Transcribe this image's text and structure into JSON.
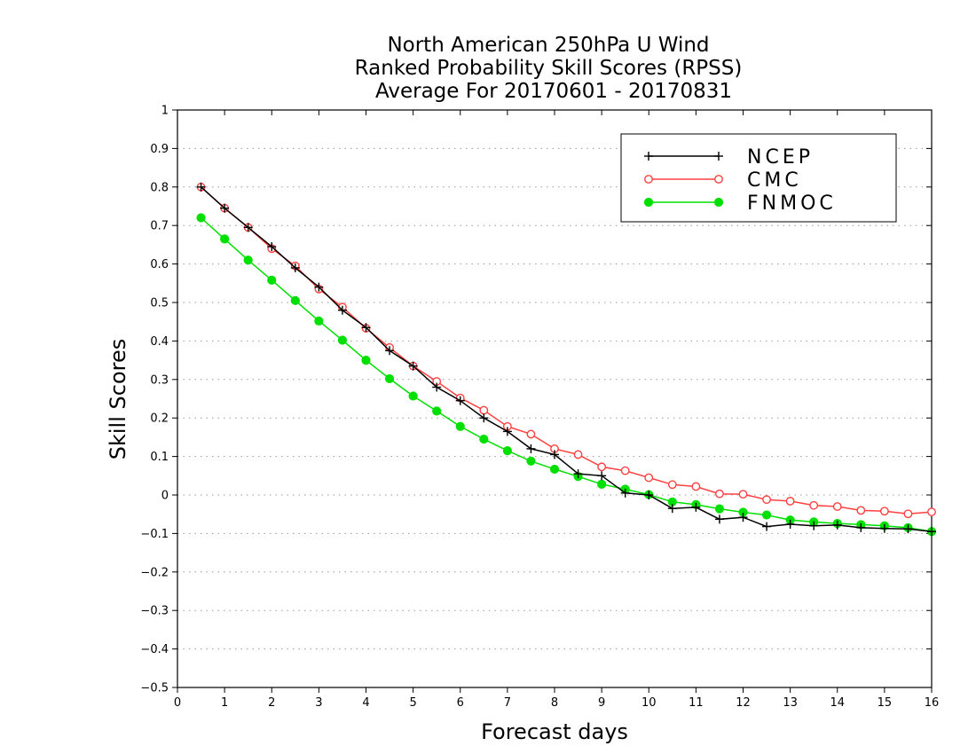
{
  "chart_data": {
    "type": "line",
    "title": [
      "North American 250hPa U Wind",
      "Ranked Probability Skill Scores (RPSS)",
      "Average For 20170601 - 20170831"
    ],
    "xlabel": "Forecast days",
    "ylabel": "Skill Scores",
    "xlim": [
      0,
      16
    ],
    "ylim": [
      -0.5,
      1
    ],
    "xticks": [
      0,
      1,
      2,
      3,
      4,
      5,
      6,
      7,
      8,
      9,
      10,
      11,
      12,
      13,
      14,
      15,
      16
    ],
    "xtick_labels": [
      "0",
      "1",
      "2",
      "3",
      "4",
      "5",
      "6",
      "7",
      "8",
      "9",
      "10",
      "11",
      "12",
      "13",
      "14",
      "15",
      "16"
    ],
    "yticks": [
      -0.5,
      -0.4,
      -0.3,
      -0.2,
      -0.1,
      0,
      0.1,
      0.2,
      0.3,
      0.4,
      0.5,
      0.6,
      0.7,
      0.8,
      0.9,
      1
    ],
    "ytick_labels": [
      "−0.5",
      "−0.4",
      "−0.3",
      "−0.2",
      "−0.1",
      "0",
      "0.1",
      "0.2",
      "0.3",
      "0.4",
      "0.5",
      "0.6",
      "0.7",
      "0.8",
      "0.9",
      "1"
    ],
    "grid": "horizontal-dotted",
    "legend_position": "top-right",
    "x": [
      0.5,
      1,
      1.5,
      2,
      2.5,
      3,
      3.5,
      4,
      4.5,
      5,
      5.5,
      6,
      6.5,
      7,
      7.5,
      8,
      8.5,
      9,
      9.5,
      10,
      10.5,
      11,
      11.5,
      12,
      12.5,
      13,
      13.5,
      14,
      14.5,
      15,
      15.5,
      16
    ],
    "series": [
      {
        "name": "NCEP",
        "color": "#000000",
        "marker": "plus",
        "values": [
          0.8,
          0.745,
          0.695,
          0.645,
          0.59,
          0.54,
          0.48,
          0.435,
          0.375,
          0.335,
          0.28,
          0.245,
          0.2,
          0.165,
          0.12,
          0.105,
          0.055,
          0.05,
          0.005,
          0.0,
          -0.035,
          -0.032,
          -0.063,
          -0.058,
          -0.082,
          -0.076,
          -0.08,
          -0.078,
          -0.085,
          -0.087,
          -0.088,
          -0.095
        ]
      },
      {
        "name": "CMC",
        "color": "#ff4040",
        "marker": "open-circle",
        "values": [
          0.8,
          0.745,
          0.695,
          0.64,
          0.595,
          0.535,
          0.488,
          0.433,
          0.383,
          0.335,
          0.295,
          0.252,
          0.22,
          0.178,
          0.158,
          0.12,
          0.105,
          0.073,
          0.063,
          0.045,
          0.027,
          0.022,
          0.003,
          0.002,
          -0.012,
          -0.016,
          -0.027,
          -0.03,
          -0.04,
          -0.042,
          -0.049,
          -0.044
        ]
      },
      {
        "name": "FNMOC",
        "color": "#00e000",
        "marker": "filled-circle",
        "values": [
          0.72,
          0.665,
          0.61,
          0.558,
          0.505,
          0.452,
          0.402,
          0.35,
          0.302,
          0.257,
          0.218,
          0.178,
          0.145,
          0.115,
          0.088,
          0.067,
          0.048,
          0.028,
          0.015,
          0.001,
          -0.018,
          -0.025,
          -0.036,
          -0.045,
          -0.052,
          -0.065,
          -0.07,
          -0.074,
          -0.077,
          -0.08,
          -0.085,
          -0.095
        ]
      }
    ]
  }
}
